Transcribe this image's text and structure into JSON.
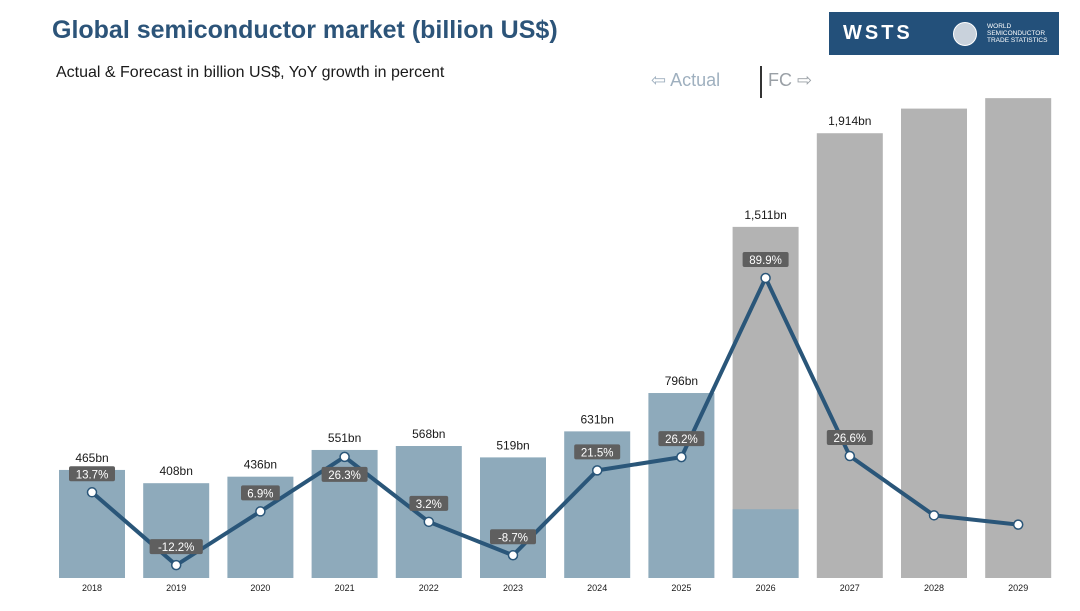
{
  "header": {
    "title": "Global semiconductor market (billion US$)",
    "subtitle": "Actual & Forecast in billion US$, YoY growth in percent"
  },
  "logo": {
    "mark": "WSTS",
    "org_lines": [
      "WORLD",
      "SEMICONDUCTOR",
      "TRADE STATISTICS"
    ]
  },
  "legend": {
    "actual": "⇦ Actual",
    "forecast": "FC ⇨"
  },
  "colors": {
    "actual_bar": "#8eaabb",
    "forecast_bar": "#b3b3b3",
    "growth_line": "#2a5679",
    "label_box": "#5f5f5f"
  },
  "chart_data": {
    "type": "bar",
    "categories": [
      "2018",
      "2019",
      "2020",
      "2021",
      "2022",
      "2023",
      "2024",
      "2025",
      "2026",
      "2027",
      "2028",
      "2029"
    ],
    "series": [
      {
        "values": [
          465,
          408,
          436,
          551,
          568,
          519,
          631,
          796,
          1511,
          1914,
          2020,
          2065
        ],
        "value_labels": [
          "465bn",
          "408bn",
          "436bn",
          "551bn",
          "568bn",
          "519bn",
          "631bn",
          "796bn",
          "1,511bn",
          "1,914bn",
          "",
          ""
        ],
        "status": [
          "actual",
          "actual",
          "actual",
          "actual",
          "actual",
          "actual",
          "actual",
          "actual",
          "forecast",
          "forecast",
          "forecast",
          "forecast"
        ],
        "actual_portion": [
          465,
          408,
          436,
          551,
          568,
          519,
          631,
          796,
          296,
          0,
          0,
          0
        ]
      },
      {
        "type": "line",
        "values": [
          13.7,
          -12.2,
          6.9,
          26.3,
          3.2,
          -8.7,
          21.5,
          26.2,
          89.9,
          26.6,
          5.5,
          2.2
        ],
        "value_labels": [
          "13.7%",
          "-12.2%",
          "6.9%",
          "26.3%",
          "3.2%",
          "-8.7%",
          "21.5%",
          "26.2%",
          "89.9%",
          "26.6%",
          "",
          ""
        ]
      }
    ],
    "ylim": [
      0,
      2100
    ],
    "y2lim": [
      -15,
      110
    ],
    "grid": false
  }
}
